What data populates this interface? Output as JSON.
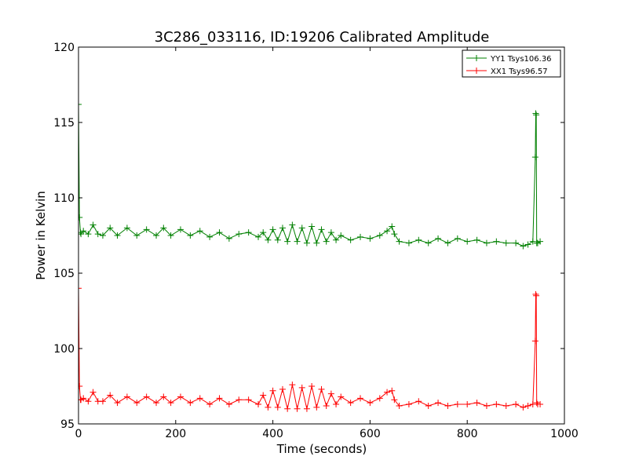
{
  "chart_data": {
    "type": "line",
    "title": "3C286_033116, ID:19206 Calibrated Amplitude",
    "xlabel": "Time (seconds)",
    "ylabel": "Power in Kelvin",
    "xlim": [
      0,
      1000
    ],
    "ylim": [
      95,
      120
    ],
    "xticks": [
      0,
      200,
      400,
      600,
      800,
      1000
    ],
    "yticks": [
      95,
      100,
      105,
      110,
      115,
      120
    ],
    "grid": false,
    "legend_position": "top-right",
    "marker": "+",
    "series": [
      {
        "name": "YY1 Tsys106.36",
        "color": "#008000",
        "x": [
          0,
          2,
          4,
          5,
          10,
          20,
          30,
          40,
          50,
          65,
          80,
          100,
          120,
          140,
          160,
          175,
          190,
          210,
          230,
          250,
          270,
          290,
          310,
          330,
          350,
          370,
          380,
          390,
          400,
          410,
          420,
          430,
          440,
          450,
          460,
          470,
          480,
          490,
          500,
          510,
          520,
          530,
          540,
          560,
          580,
          600,
          620,
          635,
          645,
          650,
          660,
          680,
          700,
          720,
          740,
          760,
          780,
          800,
          820,
          840,
          860,
          880,
          900,
          915,
          925,
          935,
          940,
          941,
          942,
          943,
          945,
          950
        ],
        "y": [
          116.2,
          108.7,
          107.7,
          107.6,
          107.8,
          107.6,
          108.2,
          107.6,
          107.5,
          108.0,
          107.5,
          108.0,
          107.5,
          107.9,
          107.5,
          108.0,
          107.5,
          107.9,
          107.5,
          107.8,
          107.4,
          107.7,
          107.3,
          107.6,
          107.7,
          107.4,
          107.7,
          107.2,
          107.9,
          107.2,
          108.0,
          107.1,
          108.2,
          107.1,
          108.0,
          107.0,
          108.1,
          107.0,
          107.9,
          107.1,
          107.7,
          107.2,
          107.5,
          107.2,
          107.4,
          107.3,
          107.5,
          107.8,
          108.1,
          107.6,
          107.1,
          107.0,
          107.2,
          107.0,
          107.3,
          107.0,
          107.3,
          107.1,
          107.2,
          107.0,
          107.1,
          107.0,
          107.0,
          106.8,
          106.9,
          107.1,
          112.7,
          115.6,
          115.5,
          107.0,
          107.0,
          107.1
        ]
      },
      {
        "name": "XX1 Tsys96.57",
        "color": "#ff0000",
        "x": [
          0,
          2,
          4,
          5,
          10,
          20,
          30,
          40,
          50,
          65,
          80,
          100,
          120,
          140,
          160,
          175,
          190,
          210,
          230,
          250,
          270,
          290,
          310,
          330,
          350,
          370,
          380,
          390,
          400,
          410,
          420,
          430,
          440,
          450,
          460,
          470,
          480,
          490,
          500,
          510,
          520,
          530,
          540,
          560,
          580,
          600,
          620,
          635,
          645,
          650,
          660,
          680,
          700,
          720,
          740,
          760,
          780,
          800,
          820,
          840,
          860,
          880,
          900,
          915,
          925,
          935,
          940,
          941,
          942,
          943,
          945,
          950
        ],
        "y": [
          104.0,
          97.5,
          96.6,
          96.6,
          96.7,
          96.5,
          97.1,
          96.5,
          96.5,
          96.9,
          96.4,
          96.8,
          96.4,
          96.8,
          96.4,
          96.8,
          96.4,
          96.8,
          96.4,
          96.7,
          96.3,
          96.7,
          96.3,
          96.6,
          96.6,
          96.3,
          96.9,
          96.1,
          97.2,
          96.1,
          97.3,
          96.0,
          97.6,
          96.0,
          97.4,
          96.0,
          97.5,
          96.1,
          97.3,
          96.2,
          97.0,
          96.3,
          96.8,
          96.4,
          96.7,
          96.4,
          96.7,
          97.1,
          97.2,
          96.6,
          96.2,
          96.3,
          96.5,
          96.2,
          96.4,
          96.2,
          96.3,
          96.3,
          96.4,
          96.2,
          96.3,
          96.2,
          96.3,
          96.1,
          96.2,
          96.3,
          100.5,
          103.6,
          103.5,
          96.4,
          96.3,
          96.3
        ]
      }
    ]
  }
}
